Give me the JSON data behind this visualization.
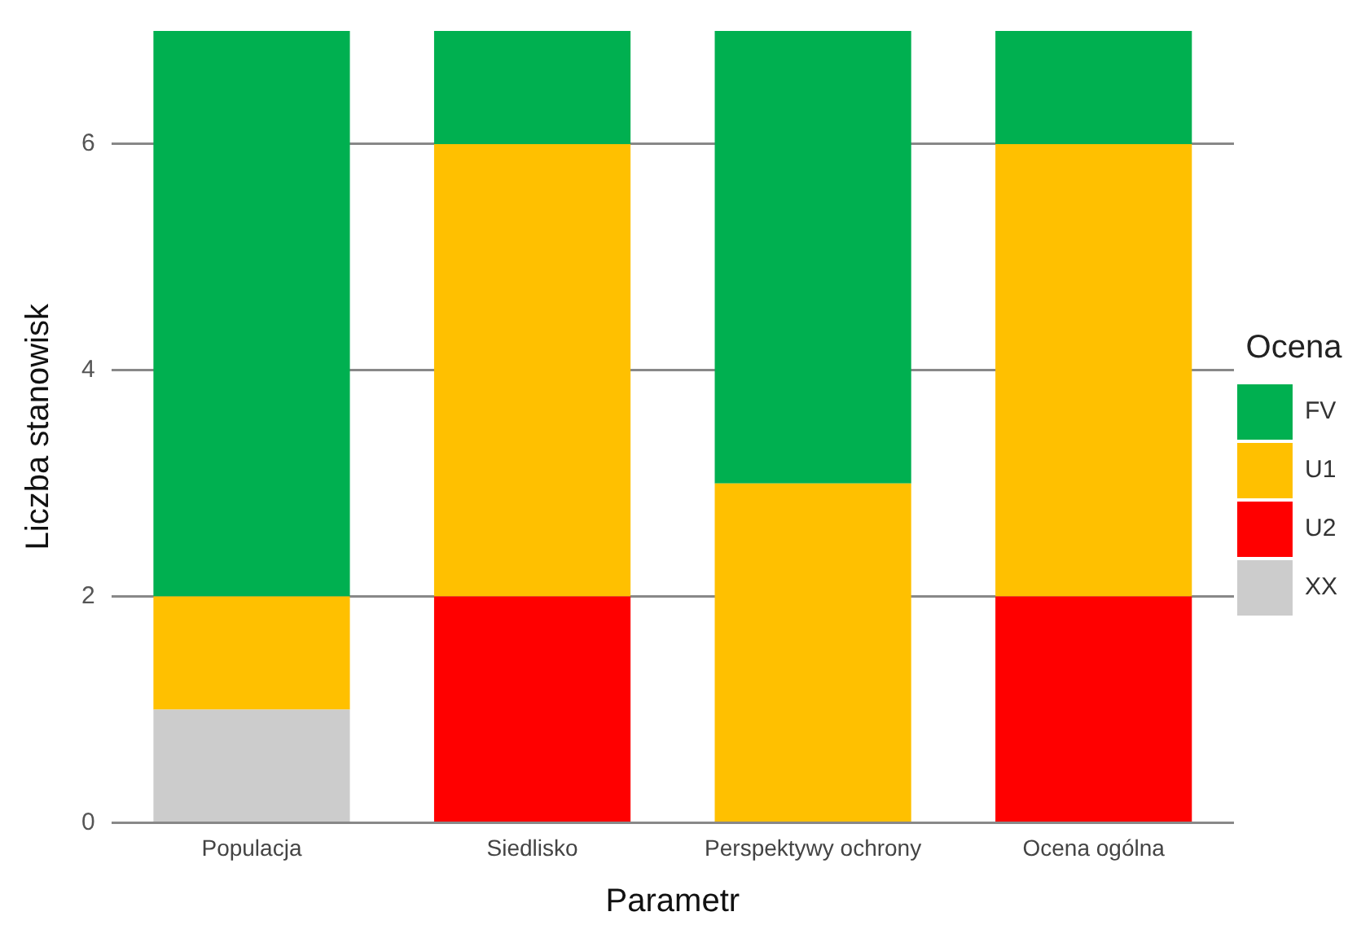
{
  "chart_data": {
    "type": "bar",
    "stacked": true,
    "xlabel": "Parametr",
    "ylabel": "Liczba stanowisk",
    "legend_title": "Ocena",
    "legend": "right",
    "categories": [
      "Populacja",
      "Siedlisko",
      "Perspektywy ochrony",
      "Ocena ogólna"
    ],
    "series": [
      {
        "name": "XX",
        "color": "#cccccc",
        "values": [
          1,
          0,
          0,
          0
        ]
      },
      {
        "name": "U2",
        "color": "#ff0000",
        "values": [
          0,
          2,
          0,
          2
        ]
      },
      {
        "name": "U1",
        "color": "#ffc000",
        "values": [
          1,
          4,
          3,
          4
        ]
      },
      {
        "name": "FV",
        "color": "#00b050",
        "values": [
          5,
          1,
          4,
          1
        ]
      }
    ],
    "ylim": [
      0,
      7
    ],
    "yticks": [
      0,
      2,
      4,
      6
    ],
    "grid": "y"
  }
}
